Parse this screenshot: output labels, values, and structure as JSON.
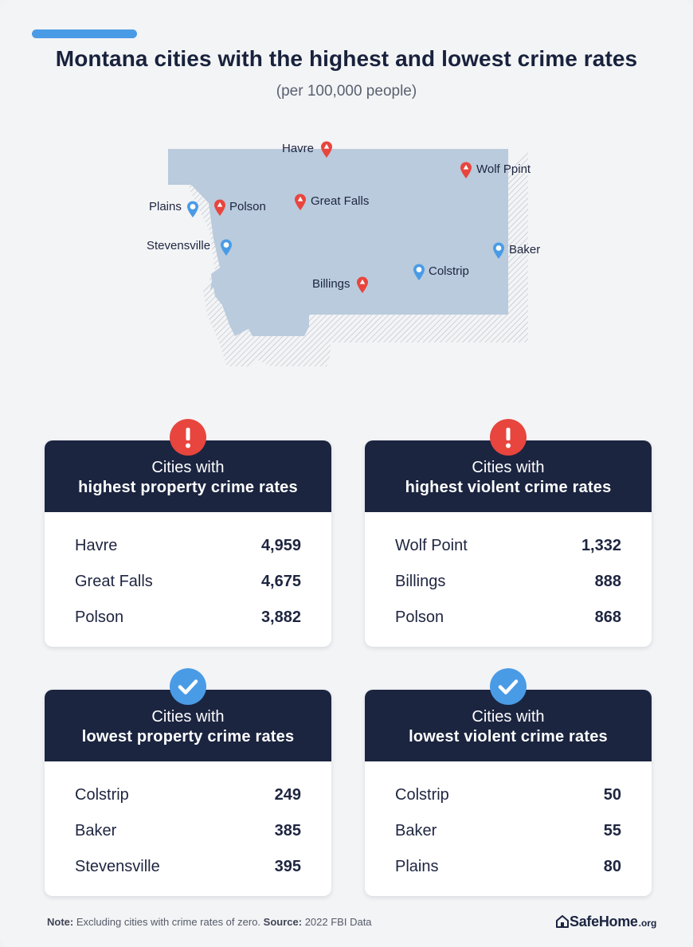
{
  "header": {
    "title": "Montana cities with the highest and lowest crime rates",
    "subtitle": "(per 100,000 people)"
  },
  "map": {
    "pins": [
      {
        "name": "Havre",
        "type": "high"
      },
      {
        "name": "Wolf Ppint",
        "type": "high"
      },
      {
        "name": "Plains",
        "type": "low"
      },
      {
        "name": "Polson",
        "type": "high"
      },
      {
        "name": "Great Falls",
        "type": "high"
      },
      {
        "name": "Stevensville",
        "type": "low"
      },
      {
        "name": "Baker",
        "type": "low"
      },
      {
        "name": "Colstrip",
        "type": "low"
      },
      {
        "name": "Billings",
        "type": "high"
      }
    ]
  },
  "cards": [
    {
      "icon": "alert-icon",
      "line1": "Cities with",
      "line2": "highest property crime rates",
      "rows": [
        {
          "city": "Havre",
          "value": "4,959"
        },
        {
          "city": "Great Falls",
          "value": "4,675"
        },
        {
          "city": "Polson",
          "value": "3,882"
        }
      ]
    },
    {
      "icon": "alert-icon",
      "line1": "Cities with",
      "line2": "highest violent crime rates",
      "rows": [
        {
          "city": "Wolf Point",
          "value": "1,332"
        },
        {
          "city": "Billings",
          "value": "888"
        },
        {
          "city": "Polson",
          "value": "868"
        }
      ]
    },
    {
      "icon": "check-icon",
      "line1": "Cities with",
      "line2": "lowest property crime rates",
      "rows": [
        {
          "city": "Colstrip",
          "value": "249"
        },
        {
          "city": "Baker",
          "value": "385"
        },
        {
          "city": "Stevensville",
          "value": "395"
        }
      ]
    },
    {
      "icon": "check-icon",
      "line1": "Cities with",
      "line2": "lowest violent crime rates",
      "rows": [
        {
          "city": "Colstrip",
          "value": "50"
        },
        {
          "city": "Baker",
          "value": "55"
        },
        {
          "city": "Plains",
          "value": "80"
        }
      ]
    }
  ],
  "footer": {
    "note_label": "Note:",
    "note_text": "Excluding cities with crime rates of zero.",
    "source_label": "Source:",
    "source_text": "2022 FBI Data",
    "logo_word": "SafeHome",
    "logo_tld": ".org"
  },
  "colors": {
    "high": "#e8453e",
    "low": "#4a9be6",
    "navy": "#1b2540",
    "map_fill": "#b8cadd"
  }
}
